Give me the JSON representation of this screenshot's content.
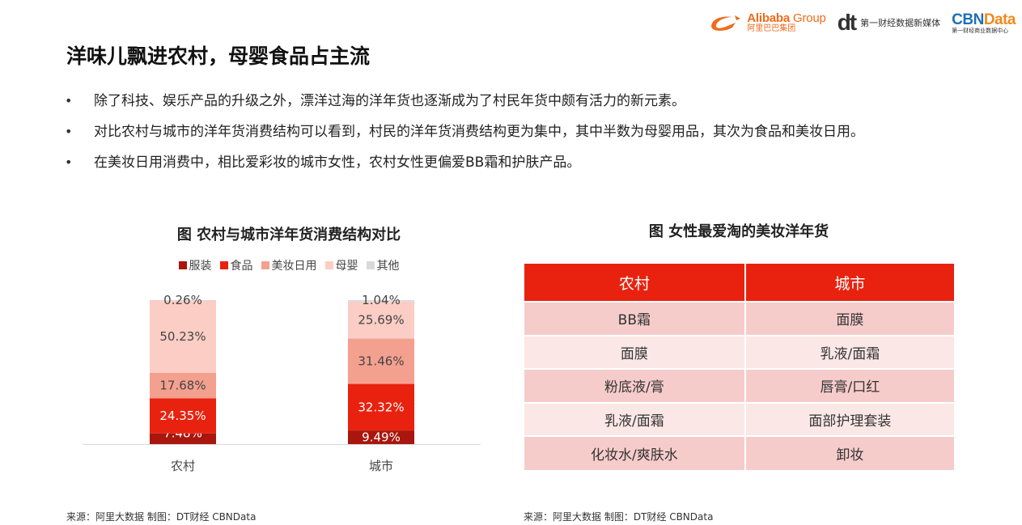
{
  "header": {
    "alibaba_en": "Alibaba",
    "alibaba_group": "Group",
    "alibaba_cn": "阿里巴巴集团",
    "dt_mark": "dt",
    "dt_text": "第一财经数据新媒体",
    "cbn_prefix": "CBN",
    "cbn_suffix": "Data",
    "cbn_cn": "第一财经商业数据中心"
  },
  "title": "洋味儿飘进农村，母婴食品占主流",
  "bullets": [
    "除了科技、娱乐产品的升级之外，漂洋过海的洋年货也逐渐成为了村民年货中颇有活力的新元素。",
    "对比农村与城市的洋年货消费结构可以看到，村民的洋年货消费结构更为集中，其中半数为母婴用品，其次为食品和美妆日用。",
    "在美妆日用消费中，相比爱彩妆的城市女性，农村女性更偏爱BB霜和护肤产品。"
  ],
  "chart_data": {
    "type": "bar",
    "stacked": true,
    "title": "图 农村与城市洋年货消费结构对比",
    "categories": [
      "农村",
      "城市"
    ],
    "series": [
      {
        "name": "服装",
        "values": [
          7.48,
          9.49
        ],
        "color": "#a8160d"
      },
      {
        "name": "食品",
        "values": [
          24.35,
          32.32
        ],
        "color": "#e8220f"
      },
      {
        "name": "美妆日用",
        "values": [
          17.68,
          31.46
        ],
        "color": "#f4a08f"
      },
      {
        "name": "母婴",
        "values": [
          50.23,
          25.69
        ],
        "color": "#fbcdc4"
      },
      {
        "name": "其他",
        "values": [
          0.26,
          1.04
        ],
        "color": "#d9d9d9"
      }
    ],
    "value_suffix": "%",
    "ylim": [
      0,
      100
    ],
    "legend_position": "top",
    "grid": false
  },
  "table": {
    "title": "图 女性最爱淘的美妆洋年货",
    "headers": [
      "农村",
      "城市"
    ],
    "rows": [
      [
        "BB霜",
        "面膜"
      ],
      [
        "面膜",
        "乳液/面霜"
      ],
      [
        "粉底液/膏",
        "唇膏/口红"
      ],
      [
        "乳液/面霜",
        "面部护理套装"
      ],
      [
        "化妆水/爽肤水",
        "卸妆"
      ]
    ]
  },
  "sources": {
    "left": "来源：阿里大数据   制图：DT财经   CBNData",
    "right": "来源：阿里大数据   制图：DT财经   CBNData"
  }
}
